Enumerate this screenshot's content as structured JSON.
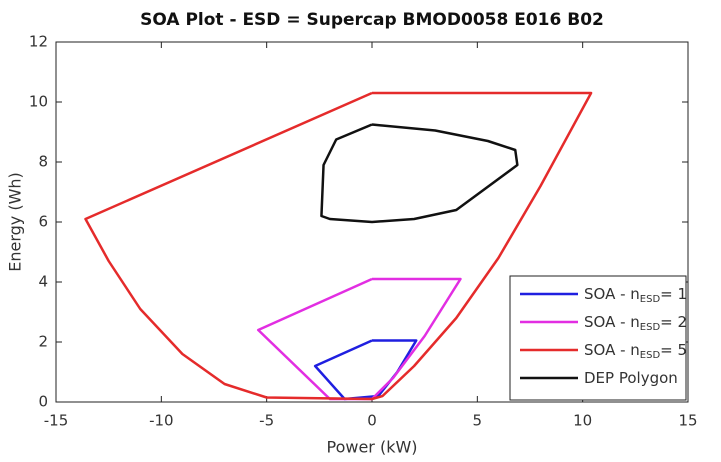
{
  "chart_data": {
    "type": "line",
    "title": "SOA Plot - ESD = Supercap BMOD0058 E016 B02",
    "x_label": "Power (kW)",
    "y_label": "Energy (Wh)",
    "xlim": [
      -15,
      15
    ],
    "xticks": [
      -15,
      -10,
      -5,
      0,
      5,
      10,
      15
    ],
    "ylim": [
      0,
      12
    ],
    "yticks": [
      0,
      2,
      4,
      6,
      8,
      10,
      12
    ],
    "legend_position": "lower right",
    "grid": false,
    "series": [
      {
        "name": "SOA - n",
        "subscript": "ESD",
        "suffix": "= 1",
        "color": "#1f1fe0",
        "x": [
          0,
          2.1,
          1.2,
          0.3,
          -1.3,
          -2.7,
          0
        ],
        "values": [
          2.05,
          2.05,
          1.0,
          0.2,
          0.1,
          1.2,
          2.05
        ]
      },
      {
        "name": "SOA - n",
        "subscript": "ESD",
        "suffix": "= 2",
        "color": "#e22ee2",
        "x": [
          0,
          4.2,
          2.5,
          1,
          0,
          -2,
          -5.4,
          0
        ],
        "values": [
          4.1,
          4.1,
          2.2,
          0.8,
          0.1,
          0.1,
          2.4,
          4.1
        ]
      },
      {
        "name": "SOA - n",
        "subscript": "ESD",
        "suffix": "= 5",
        "color": "#e52b2b",
        "x": [
          0,
          10.4,
          8,
          6,
          4,
          2,
          0.5,
          0,
          -5,
          -7,
          -9,
          -11,
          -12.5,
          -13.6,
          0
        ],
        "values": [
          10.3,
          10.3,
          7.2,
          4.8,
          2.8,
          1.2,
          0.2,
          0.1,
          0.15,
          0.6,
          1.6,
          3.1,
          4.7,
          6.1,
          10.3
        ]
      },
      {
        "name": "DEP Polygon",
        "color": "#111111",
        "x": [
          0,
          3,
          5.5,
          6.8,
          6.9,
          4,
          2,
          0,
          -2,
          -2.4,
          -2.3,
          -1.7,
          0
        ],
        "values": [
          9.25,
          9.05,
          8.7,
          8.4,
          7.9,
          6.4,
          6.1,
          6.0,
          6.1,
          6.2,
          7.9,
          8.75,
          9.25
        ]
      }
    ]
  }
}
